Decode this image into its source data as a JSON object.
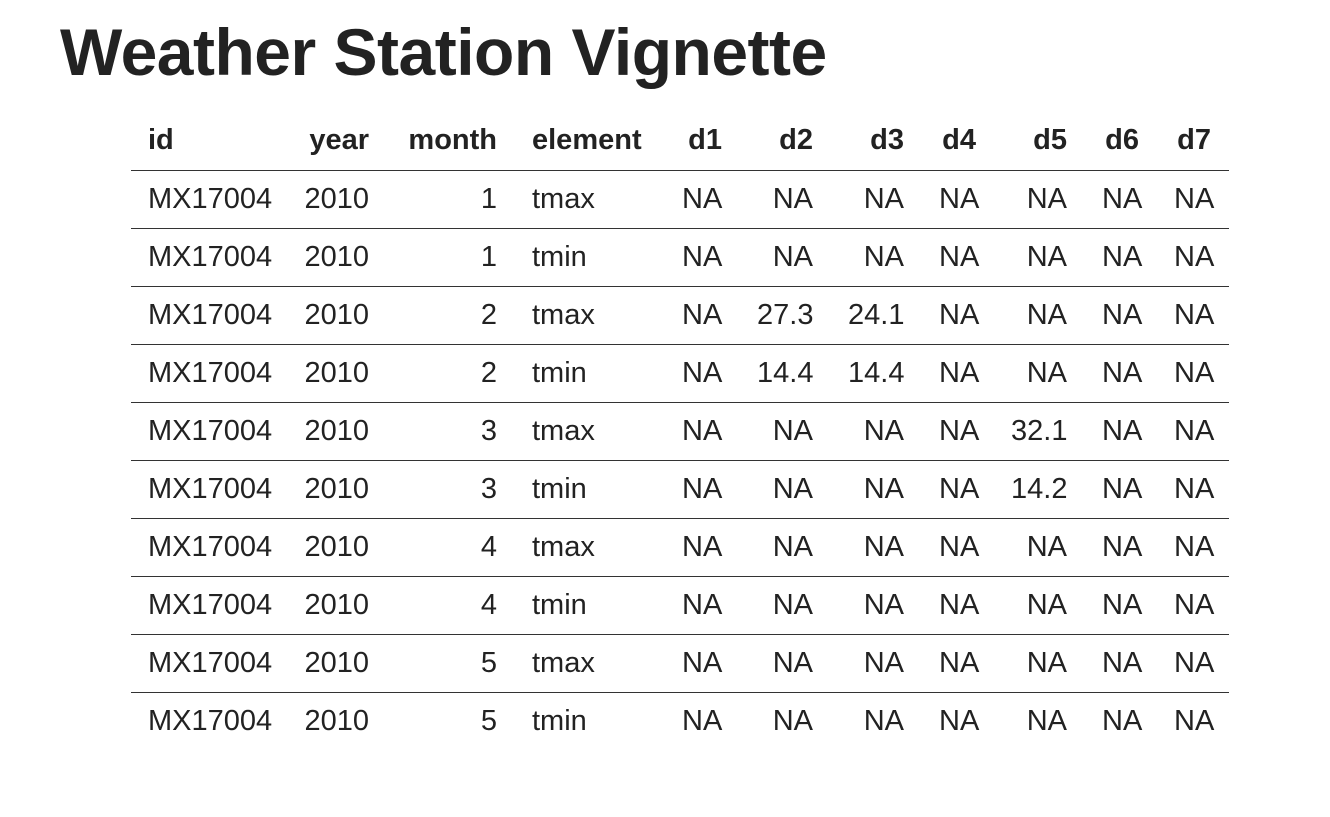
{
  "page": {
    "title": "Weather Station Vignette"
  },
  "table": {
    "columns": [
      "id",
      "year",
      "month",
      "element",
      "d1",
      "d2",
      "d3",
      "d4",
      "d5",
      "d6",
      "d7"
    ],
    "rows": [
      [
        "MX17004",
        "2010",
        "1",
        "tmax",
        "NA",
        "NA",
        "NA",
        "NA",
        "NA",
        "NA",
        "NA"
      ],
      [
        "MX17004",
        "2010",
        "1",
        "tmin",
        "NA",
        "NA",
        "NA",
        "NA",
        "NA",
        "NA",
        "NA"
      ],
      [
        "MX17004",
        "2010",
        "2",
        "tmax",
        "NA",
        "27.3",
        "24.1",
        "NA",
        "NA",
        "NA",
        "NA"
      ],
      [
        "MX17004",
        "2010",
        "2",
        "tmin",
        "NA",
        "14.4",
        "14.4",
        "NA",
        "NA",
        "NA",
        "NA"
      ],
      [
        "MX17004",
        "2010",
        "3",
        "tmax",
        "NA",
        "NA",
        "NA",
        "NA",
        "32.1",
        "NA",
        "NA"
      ],
      [
        "MX17004",
        "2010",
        "3",
        "tmin",
        "NA",
        "NA",
        "NA",
        "NA",
        "14.2",
        "NA",
        "NA"
      ],
      [
        "MX17004",
        "2010",
        "4",
        "tmax",
        "NA",
        "NA",
        "NA",
        "NA",
        "NA",
        "NA",
        "NA"
      ],
      [
        "MX17004",
        "2010",
        "4",
        "tmin",
        "NA",
        "NA",
        "NA",
        "NA",
        "NA",
        "NA",
        "NA"
      ],
      [
        "MX17004",
        "2010",
        "5",
        "tmax",
        "NA",
        "NA",
        "NA",
        "NA",
        "NA",
        "NA",
        "NA"
      ],
      [
        "MX17004",
        "2010",
        "5",
        "tmin",
        "NA",
        "NA",
        "NA",
        "NA",
        "NA",
        "NA",
        "NA"
      ]
    ]
  }
}
